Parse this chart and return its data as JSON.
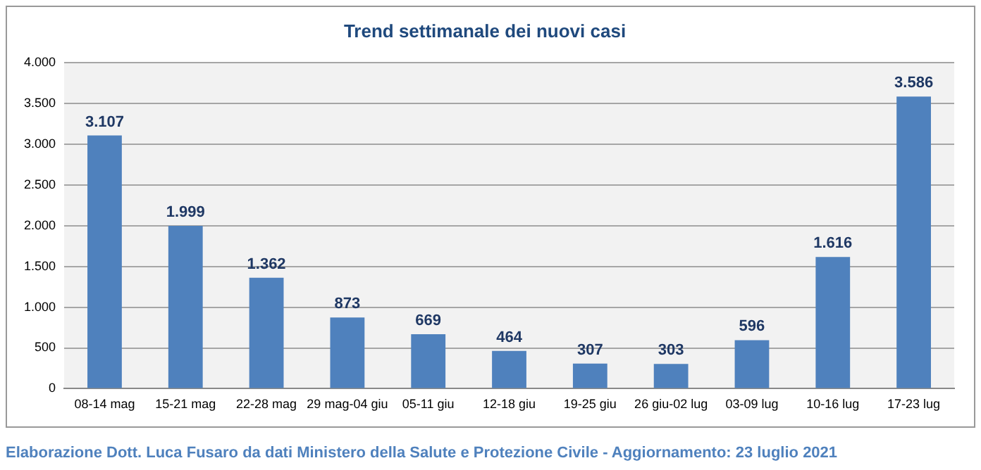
{
  "chart_data": {
    "type": "bar",
    "title": "Trend settimanale dei nuovi casi",
    "categories": [
      "08-14 mag",
      "15-21 mag",
      "22-28 mag",
      "29 mag-04 giu",
      "05-11 giu",
      "12-18 giu",
      "19-25 giu",
      "26 giu-02 lug",
      "03-09 lug",
      "10-16 lug",
      "17-23 lug"
    ],
    "values": [
      3107,
      1999,
      1362,
      873,
      669,
      464,
      307,
      303,
      596,
      1616,
      3586
    ],
    "value_labels": [
      "3.107",
      "1.999",
      "1.362",
      "873",
      "669",
      "464",
      "307",
      "303",
      "596",
      "1.616",
      "3.586"
    ],
    "color": "#4f81bd",
    "ylim": [
      0,
      4000
    ],
    "yticks": [
      0,
      500,
      {
        "value": 1000,
        "label": "1.000"
      },
      {
        "value": 1500,
        "label": "1.500"
      },
      {
        "value": 2000,
        "label": "2.000"
      },
      {
        "value": 2500,
        "label": "2.500"
      },
      {
        "value": 3000,
        "label": "3.000"
      },
      {
        "value": 3500,
        "label": "3.500"
      },
      {
        "value": 4000,
        "label": "4.000"
      }
    ],
    "grid": "y",
    "legend": false,
    "annotations": [
      "Elaborazione Dott. Luca Fusaro da dati Ministero della Salute e Protezione Civile - Aggiornamento: 23 luglio 2021"
    ]
  }
}
